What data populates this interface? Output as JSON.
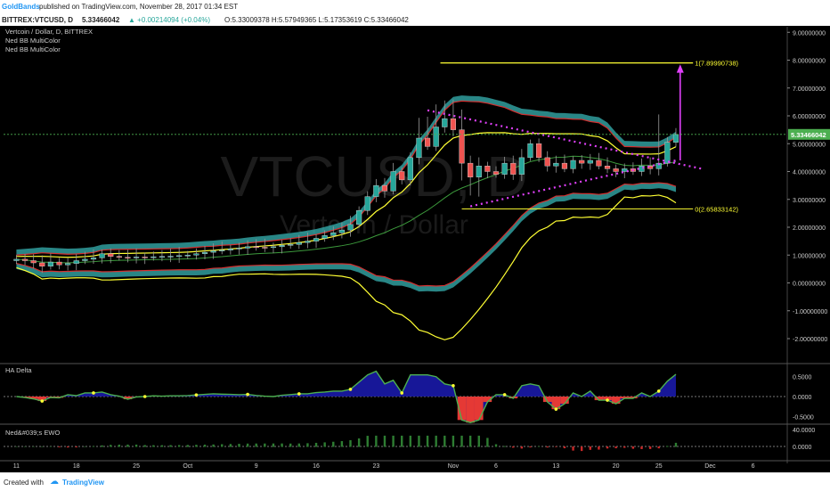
{
  "header": {
    "author": "GoldBands",
    "published": "published on TradingView.com, November 28, 2017 01:34 EST",
    "symbol": "BITTREX:VTCUSD, D",
    "last": "5.33466042",
    "change": "▲ +0.00214094 (+0.04%)",
    "ohlc": "O:5.33009378 H:5.57949365 L:5.17353619 C:5.33466042"
  },
  "legend": {
    "title": "Vertcoin / Dollar, D, BITTREX",
    "ind1": "Ned BB MultiColor",
    "ind2": "Ned BB MultiColor"
  },
  "watermark": {
    "big": "VTCUSD, D",
    "small": "Vertcoin / Dollar"
  },
  "annotations": {
    "fib1": "1(7.89990738)",
    "fib0": "0(2.65833142)"
  },
  "price_badge": "5.33466042",
  "panes": {
    "ha_title": "HA Delta",
    "ewo_title": "Ned&#039;s EWO"
  },
  "footer": {
    "created_with": "Created with",
    "brand": "TradingView"
  },
  "colors": {
    "bull": "#26a69a",
    "bear": "#ef5350",
    "band_fill": "#37b3b3",
    "yellow": "#ffff33",
    "magenta": "#e040fb",
    "green_line": "#3c9a3c"
  },
  "chart_data": [
    {
      "type": "candlestick",
      "title": "Vertcoin / Dollar, D, BITTREX",
      "y_ticks": [
        "9.00000000",
        "8.00000000",
        "7.00000000",
        "6.00000000",
        "5.00000000",
        "4.00000000",
        "3.00000000",
        "2.00000000",
        "1.00000000",
        "0.00000000",
        "-1.00000000",
        "-2.00000000"
      ],
      "ylim": [
        -2.8,
        9.2
      ],
      "x_ticks": [
        {
          "label": "11",
          "day": 0
        },
        {
          "label": "18",
          "day": 7
        },
        {
          "label": "25",
          "day": 14
        },
        {
          "label": "Oct",
          "day": 20
        },
        {
          "label": "9",
          "day": 28
        },
        {
          "label": "16",
          "day": 35
        },
        {
          "label": "23",
          "day": 42
        },
        {
          "label": "Nov",
          "day": 51
        },
        {
          "label": "6",
          "day": 56
        },
        {
          "label": "13",
          "day": 63
        },
        {
          "label": "20",
          "day": 70
        },
        {
          "label": "25",
          "day": 75
        },
        {
          "label": "Dec",
          "day": 81
        },
        {
          "label": "6",
          "day": 86
        }
      ],
      "last_price": 5.33466042,
      "fib_levels": [
        {
          "label": "1(7.89990738)",
          "value": 7.89990738
        },
        {
          "label": "0(2.65833142)",
          "value": 2.65833142
        }
      ],
      "closes": [
        0.85,
        0.8,
        0.72,
        0.6,
        0.75,
        0.65,
        0.7,
        0.8,
        0.85,
        0.9,
        1.05,
        0.95,
        0.92,
        0.9,
        0.93,
        0.92,
        0.94,
        0.95,
        0.96,
        0.98,
        1.0,
        1.05,
        1.1,
        1.15,
        1.18,
        1.22,
        1.25,
        1.3,
        1.28,
        1.27,
        1.3,
        1.35,
        1.38,
        1.45,
        1.5,
        1.6,
        1.7,
        1.8,
        1.9,
        2.1,
        2.6,
        3.1,
        3.5,
        3.3,
        4.0,
        3.7,
        4.5,
        5.2,
        4.9,
        5.6,
        5.9,
        5.5,
        4.3,
        3.8,
        4.2,
        4.0,
        3.9,
        4.3,
        3.9,
        4.5,
        5.0,
        4.5,
        4.2,
        4.3,
        4.1,
        4.4,
        4.3,
        4.4,
        4.2,
        4.1,
        4.0,
        4.1,
        4.0,
        4.2,
        4.1,
        4.3,
        5.05,
        5.33
      ],
      "ha_delta": {
        "yticks": [
          "0.5000",
          "0.0000",
          "-0.5000"
        ]
      },
      "ewo": {
        "yticks": [
          "40.0000",
          "0.0000"
        ]
      }
    }
  ]
}
